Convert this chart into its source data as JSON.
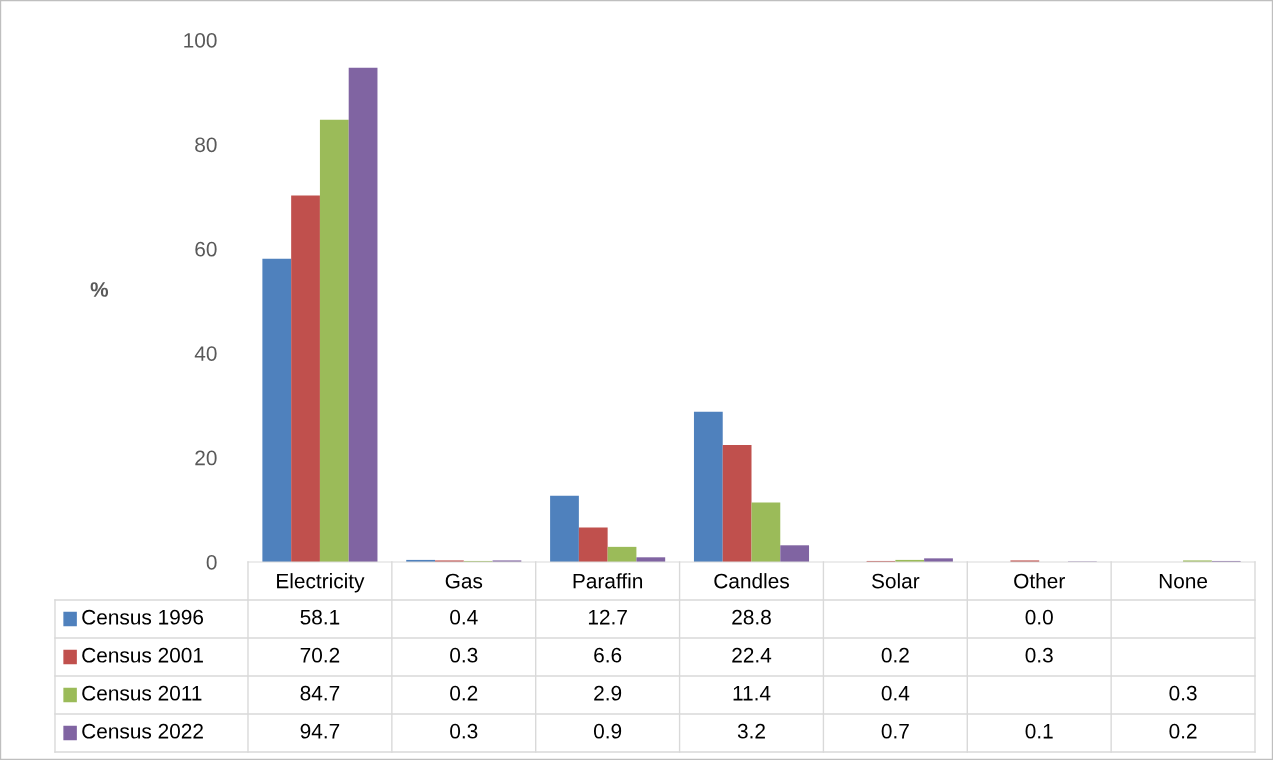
{
  "chart_data": {
    "type": "bar",
    "ylabel": "%",
    "categories": [
      "Electricity",
      "Gas",
      "Paraffin",
      "Candles",
      "Solar",
      "Other",
      "None"
    ],
    "series": [
      {
        "name": "Census 1996",
        "color": "#4f81bd",
        "values": [
          58.1,
          0.4,
          12.7,
          28.8,
          null,
          0.0,
          null
        ],
        "value_labels": [
          "58.1",
          "0.4",
          "12.7",
          "28.8",
          null,
          "0.0",
          null
        ]
      },
      {
        "name": "Census 2001",
        "color": "#c0504d",
        "values": [
          70.2,
          0.3,
          6.6,
          22.4,
          0.2,
          0.3,
          null
        ],
        "value_labels": [
          "70.2",
          "0.3",
          "6.6",
          "22.4",
          "0.2",
          "0.3",
          null
        ]
      },
      {
        "name": "Census 2011",
        "color": "#9bbb59",
        "values": [
          84.7,
          0.2,
          2.9,
          11.4,
          0.4,
          null,
          0.3
        ],
        "value_labels": [
          "84.7",
          "0.2",
          "2.9",
          "11.4",
          "0.4",
          null,
          "0.3"
        ]
      },
      {
        "name": "Census 2022",
        "color": "#8064a2",
        "values": [
          94.7,
          0.3,
          0.9,
          3.2,
          0.7,
          0.1,
          0.2
        ],
        "value_labels": [
          "94.7",
          "0.3",
          "0.9",
          "3.2",
          "0.7",
          "0.1",
          "0.2"
        ]
      }
    ],
    "ylim": [
      0,
      100
    ],
    "yticks": [
      0,
      20,
      40,
      60,
      80,
      100
    ],
    "legend": "bottom",
    "grid": false
  }
}
